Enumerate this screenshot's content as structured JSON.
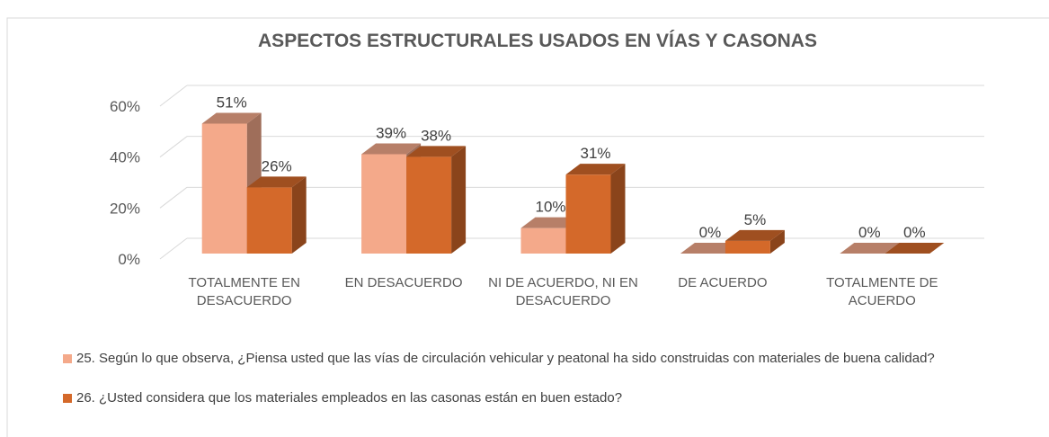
{
  "chart_data": {
    "type": "bar3d",
    "title": "ASPECTOS ESTRUCTURALES  USADOS EN VÍAS Y CASONAS",
    "categories": [
      "TOTALMENTE EN DESACUERDO",
      "EN DESACUERDO",
      "NI DE ACUERDO, NI EN DESACUERDO",
      "DE ACUERDO",
      "TOTALMENTE DE ACUERDO"
    ],
    "series": [
      {
        "name": "25. Según lo que observa, ¿Piensa usted que las vías de circulación vehicular y peatonal ha sido construidas con materiales de buena calidad?",
        "color": "#f4a98a",
        "values": [
          51,
          39,
          10,
          0,
          0
        ],
        "value_labels": [
          "51%",
          "39%",
          "10%",
          "0%",
          "0%"
        ]
      },
      {
        "name": "26. ¿Usted considera que los materiales empleados en las casonas están en buen estado?",
        "color": "#d4692a",
        "values": [
          26,
          38,
          31,
          5,
          0
        ],
        "value_labels": [
          "26%",
          "38%",
          "31%",
          "5%",
          "0%"
        ]
      }
    ],
    "ylim": [
      0,
      60
    ],
    "yticks": [
      {
        "value": 0,
        "label": "0%"
      },
      {
        "value": 20,
        "label": "20%"
      },
      {
        "value": 40,
        "label": "40%"
      },
      {
        "value": 60,
        "label": "60%"
      }
    ],
    "grid": true,
    "legend": "bottom"
  }
}
